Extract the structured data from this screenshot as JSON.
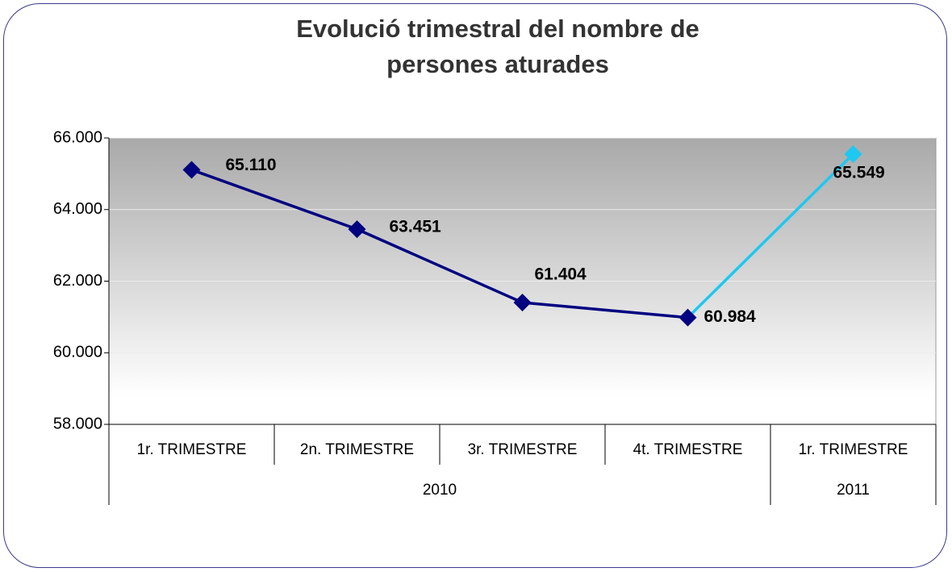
{
  "chart_data": {
    "type": "line",
    "title": "Evolució trimestral del nombre de persones aturades",
    "categories": [
      "1r. TRIMESTRE",
      "2n. TRIMESTRE",
      "3r. TRIMESTRE",
      "4t. TRIMESTRE",
      "1r. TRIMESTRE"
    ],
    "category_groups": [
      "2010",
      "2010",
      "2010",
      "2010",
      "2011"
    ],
    "series": [
      {
        "values": [
          65110,
          63451,
          61404,
          60984,
          65549
        ],
        "value_labels": [
          "65.110",
          "63.451",
          "61.404",
          "60.984",
          "65.549"
        ],
        "colors": [
          "#000080",
          "#000080",
          "#000080",
          "#000080",
          "#1ec8f0"
        ]
      }
    ],
    "ylim": [
      58000,
      66000
    ],
    "yticks": [
      {
        "value": 58000,
        "label": "58.000"
      },
      {
        "value": 60000,
        "label": "60.000"
      },
      {
        "value": 62000,
        "label": "62.000"
      },
      {
        "value": 64000,
        "label": "64.000"
      },
      {
        "value": 66000,
        "label": "66.000"
      }
    ],
    "grid": true
  }
}
